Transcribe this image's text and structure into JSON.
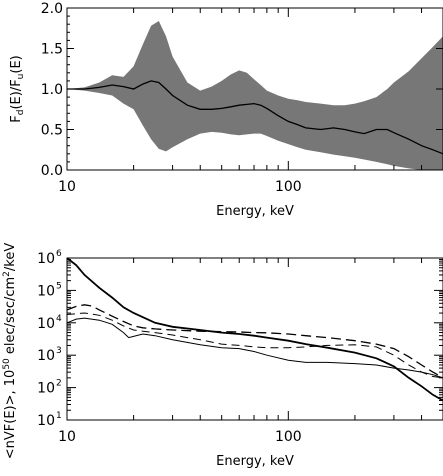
{
  "chart_data": [
    {
      "type": "area",
      "xscale": "log",
      "xlim": [
        10,
        500
      ],
      "ylim": [
        0,
        2
      ],
      "xticks": [
        10,
        100
      ],
      "xtick_labels": [
        "10",
        "100"
      ],
      "yticks": [
        0,
        0.5,
        1,
        1.5,
        2
      ],
      "ytick_labels": [
        "0.0",
        "0.5",
        "1.0",
        "1.5",
        "2.0"
      ],
      "xlabel": "Energy, keV",
      "ylabel": {
        "prefix": "F",
        "sub1": "d",
        "mid": "(E)/F",
        "sub2": "u",
        "suffix": "(E)"
      },
      "fill_color": "#777777",
      "series": [
        {
          "kind": "band",
          "x": [
            10,
            12,
            14,
            16,
            18,
            20,
            22,
            24,
            26,
            28,
            30,
            35,
            40,
            45,
            50,
            55,
            60,
            65,
            70,
            75,
            80,
            90,
            100,
            110,
            120,
            140,
            160,
            180,
            200,
            220,
            250,
            280,
            300,
            350,
            400,
            450,
            500
          ],
          "upper": [
            1.0,
            1.02,
            1.08,
            1.17,
            1.15,
            1.28,
            1.55,
            1.78,
            1.84,
            1.65,
            1.4,
            1.08,
            0.98,
            1.03,
            1.1,
            1.18,
            1.23,
            1.2,
            1.12,
            1.05,
            0.98,
            0.92,
            0.88,
            0.86,
            0.84,
            0.82,
            0.8,
            0.8,
            0.82,
            0.85,
            0.9,
            1.0,
            1.08,
            1.22,
            1.38,
            1.52,
            1.65
          ]
        },
        {
          "kind": "band",
          "x": [
            10,
            12,
            14,
            16,
            18,
            20,
            22,
            24,
            26,
            28,
            30,
            35,
            40,
            45,
            50,
            55,
            60,
            65,
            70,
            75,
            80,
            90,
            100,
            110,
            120,
            140,
            160,
            180,
            200,
            220,
            250,
            280,
            300,
            350,
            400,
            450,
            500
          ],
          "lower": [
            1.0,
            0.98,
            0.95,
            0.92,
            0.82,
            0.75,
            0.55,
            0.38,
            0.26,
            0.23,
            0.28,
            0.38,
            0.45,
            0.47,
            0.46,
            0.44,
            0.43,
            0.44,
            0.45,
            0.45,
            0.42,
            0.36,
            0.32,
            0.28,
            0.25,
            0.22,
            0.19,
            0.17,
            0.15,
            0.13,
            0.1,
            0.07,
            0.05,
            0.02,
            0.0,
            0.0,
            0.0
          ]
        },
        {
          "kind": "line",
          "x": [
            10,
            12,
            14,
            16,
            18,
            20,
            22,
            24,
            26,
            28,
            30,
            35,
            40,
            45,
            50,
            55,
            60,
            65,
            70,
            75,
            80,
            90,
            100,
            110,
            120,
            140,
            160,
            180,
            200,
            220,
            250,
            280,
            300,
            350,
            400,
            450,
            500
          ],
          "y": [
            1.0,
            1.0,
            1.02,
            1.05,
            1.03,
            1.0,
            1.06,
            1.1,
            1.08,
            1.0,
            0.92,
            0.8,
            0.75,
            0.75,
            0.76,
            0.78,
            0.8,
            0.81,
            0.82,
            0.8,
            0.76,
            0.67,
            0.6,
            0.56,
            0.52,
            0.5,
            0.52,
            0.5,
            0.47,
            0.45,
            0.5,
            0.5,
            0.46,
            0.38,
            0.3,
            0.25,
            0.2
          ]
        }
      ]
    },
    {
      "type": "line",
      "xscale": "log",
      "yscale": "log",
      "xlim": [
        10,
        500
      ],
      "ylim": [
        10,
        1000000
      ],
      "xticks": [
        10,
        100
      ],
      "xtick_labels": [
        "10",
        "100"
      ],
      "yticks": [
        10,
        100,
        1000,
        10000,
        100000,
        1000000
      ],
      "ytick_labels": [
        {
          "base": "10",
          "exp": "1"
        },
        {
          "base": "10",
          "exp": "2"
        },
        {
          "base": "10",
          "exp": "3"
        },
        {
          "base": "10",
          "exp": "4"
        },
        {
          "base": "10",
          "exp": "5"
        },
        {
          "base": "10",
          "exp": "6"
        }
      ],
      "xlabel": "Energy, keV",
      "ylabel": {
        "pre": "<nVF(E)>, 10",
        "exp": "50",
        "mid": " elec/sec/cm",
        "exp2": "2",
        "post": "/keV"
      },
      "series": [
        {
          "style": "thick",
          "x": [
            10,
            11,
            12,
            14,
            16,
            18,
            20,
            25,
            30,
            40,
            50,
            60,
            70,
            80,
            100,
            120,
            150,
            200,
            250,
            300,
            350,
            400,
            450,
            500
          ],
          "y": [
            1000000,
            600000,
            300000,
            120000,
            60000,
            30000,
            20000,
            10000,
            7500,
            6000,
            5000,
            4500,
            4000,
            3500,
            2800,
            2200,
            1700,
            1200,
            800,
            450,
            200,
            110,
            60,
            40
          ]
        },
        {
          "style": "dashed",
          "x": [
            10,
            11,
            12,
            13,
            14,
            16,
            18,
            20,
            22,
            25,
            30,
            40,
            50,
            60,
            70,
            80,
            100,
            120,
            150,
            200,
            250,
            300,
            350,
            400,
            450,
            500
          ],
          "y": [
            25000,
            32000,
            36000,
            33000,
            25000,
            16000,
            11000,
            8000,
            7000,
            6500,
            6000,
            5500,
            5300,
            5200,
            5000,
            4900,
            4500,
            4000,
            3500,
            2800,
            2200,
            1600,
            900,
            500,
            300,
            200
          ]
        },
        {
          "style": "thin",
          "x": [
            10,
            11,
            12,
            14,
            16,
            18,
            19,
            20,
            22,
            25,
            30,
            40,
            50,
            60,
            70,
            80,
            100,
            120,
            150,
            200,
            250,
            300,
            350,
            400,
            450,
            500
          ],
          "y": [
            10000,
            13000,
            14000,
            12000,
            9000,
            5000,
            3500,
            3800,
            4500,
            4000,
            3000,
            2100,
            1700,
            1600,
            1300,
            1000,
            700,
            600,
            600,
            550,
            500,
            400,
            350,
            300,
            250,
            200
          ]
        },
        {
          "style": "dashed2",
          "x": [
            10,
            12,
            14,
            16,
            18,
            20,
            22,
            25,
            30,
            35,
            40,
            50,
            60,
            70,
            80,
            100,
            120,
            150,
            200,
            250,
            300,
            350,
            400,
            450,
            500
          ],
          "y": [
            18000,
            20000,
            17000,
            12000,
            8000,
            6000,
            5500,
            5000,
            4200,
            3500,
            3000,
            2200,
            2000,
            1800,
            1700,
            1700,
            1800,
            2000,
            2100,
            1800,
            1000,
            500,
            300,
            220,
            200
          ]
        }
      ]
    }
  ]
}
